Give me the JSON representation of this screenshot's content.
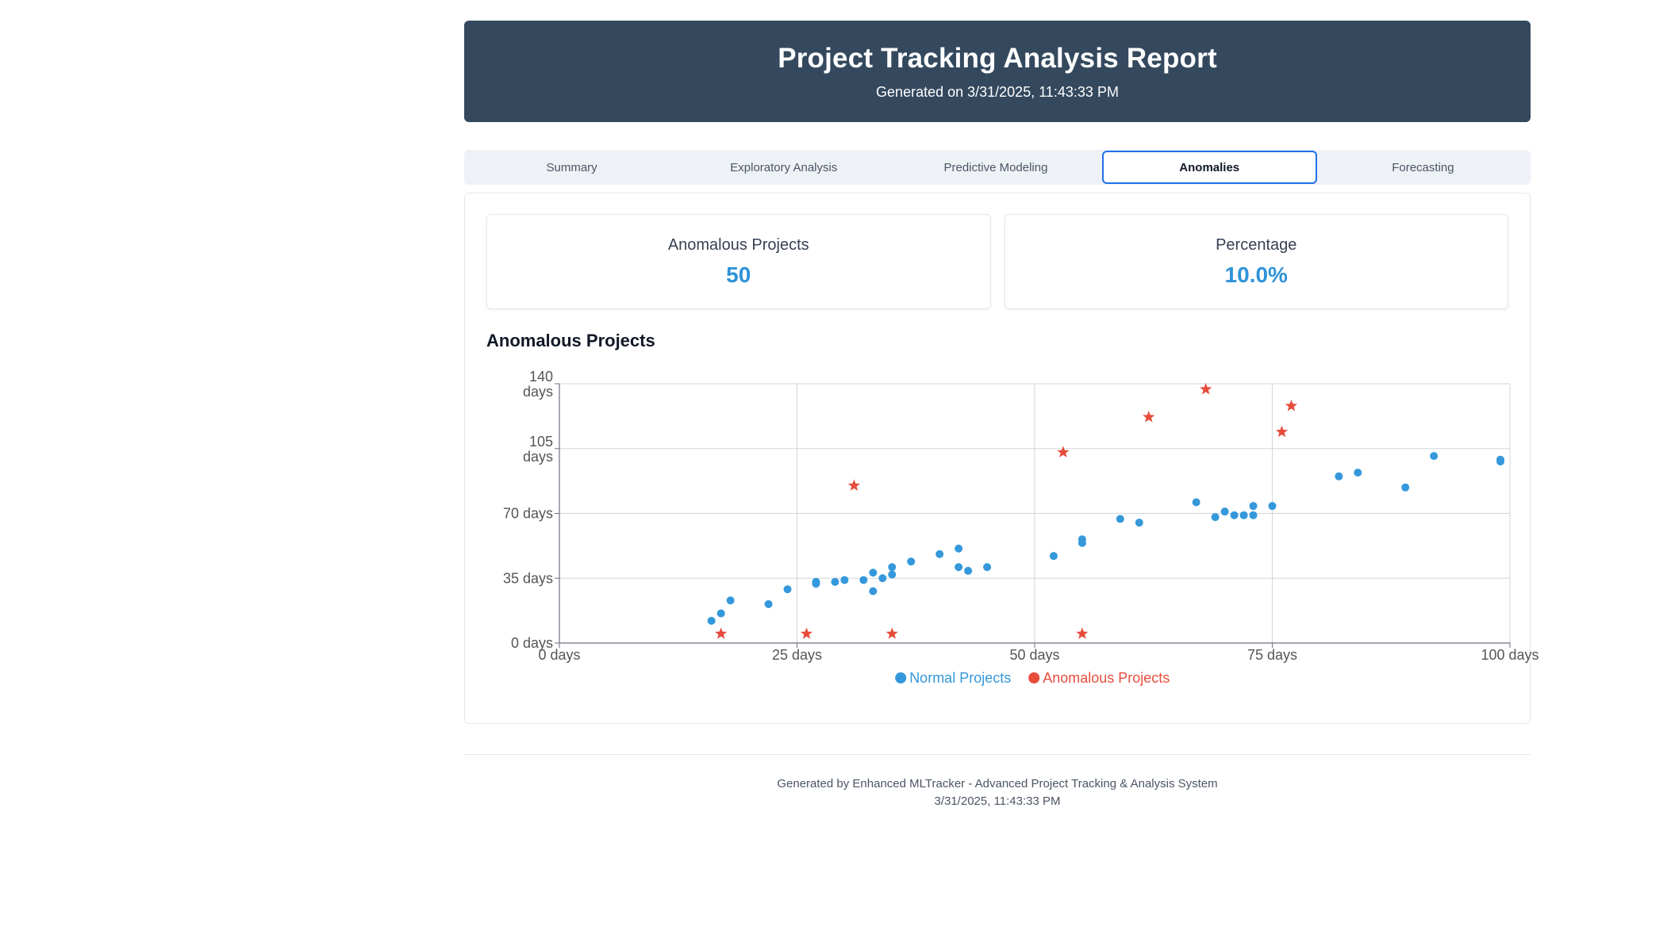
{
  "header": {
    "title": "Project Tracking Analysis Report",
    "subtitle": "Generated on 3/31/2025, 11:43:33 PM"
  },
  "tabs": [
    {
      "label": "Summary",
      "active": false
    },
    {
      "label": "Exploratory Analysis",
      "active": false
    },
    {
      "label": "Predictive Modeling",
      "active": false
    },
    {
      "label": "Anomalies",
      "active": true
    },
    {
      "label": "Forecasting",
      "active": false
    }
  ],
  "cards": {
    "anomalous": {
      "label": "Anomalous Projects",
      "value": "50"
    },
    "percentage": {
      "label": "Percentage",
      "value": "10.0%"
    }
  },
  "chart_title": "Anomalous Projects",
  "chart_data": {
    "type": "scatter",
    "title": "Anomalous Projects",
    "xlim": [
      0,
      100
    ],
    "ylim": [
      0,
      140
    ],
    "x_ticks": [
      {
        "value": 0,
        "label": "0 days"
      },
      {
        "value": 25,
        "label": "25 days"
      },
      {
        "value": 50,
        "label": "50 days"
      },
      {
        "value": 75,
        "label": "75 days"
      },
      {
        "value": 100,
        "label": "100 days"
      }
    ],
    "y_ticks": [
      {
        "value": 0,
        "label": "0 days"
      },
      {
        "value": 35,
        "label": "35 days"
      },
      {
        "value": 70,
        "label": "70 days"
      },
      {
        "value": 105,
        "label": "105 days"
      },
      {
        "value": 140,
        "label": "140 days"
      }
    ],
    "grid": true,
    "legend_position": "bottom",
    "series": [
      {
        "name": "Normal Projects",
        "color": "#3498db",
        "marker": "circle",
        "points": [
          [
            16,
            12
          ],
          [
            17,
            16
          ],
          [
            18,
            23
          ],
          [
            22,
            21
          ],
          [
            24,
            29
          ],
          [
            27,
            32
          ],
          [
            27,
            33
          ],
          [
            29,
            33
          ],
          [
            30,
            34
          ],
          [
            32,
            34
          ],
          [
            33,
            28
          ],
          [
            33,
            38
          ],
          [
            34,
            35
          ],
          [
            35,
            37
          ],
          [
            35,
            41
          ],
          [
            37,
            44
          ],
          [
            40,
            48
          ],
          [
            42,
            51
          ],
          [
            42,
            41
          ],
          [
            43,
            39
          ],
          [
            45,
            41
          ],
          [
            52,
            47
          ],
          [
            55,
            54
          ],
          [
            55,
            56
          ],
          [
            59,
            67
          ],
          [
            61,
            65
          ],
          [
            67,
            76
          ],
          [
            69,
            68
          ],
          [
            70,
            71
          ],
          [
            71,
            69
          ],
          [
            72,
            69
          ],
          [
            73,
            69
          ],
          [
            73,
            74
          ],
          [
            75,
            74
          ],
          [
            82,
            90
          ],
          [
            84,
            92
          ],
          [
            89,
            84
          ],
          [
            92,
            101
          ],
          [
            99,
            98
          ],
          [
            99,
            99
          ]
        ]
      },
      {
        "name": "Anomalous Projects",
        "color": "#e74c3c",
        "marker": "star",
        "points": [
          [
            17,
            5
          ],
          [
            26,
            5
          ],
          [
            31,
            85
          ],
          [
            35,
            5
          ],
          [
            53,
            103
          ],
          [
            55,
            5
          ],
          [
            62,
            122
          ],
          [
            68,
            137
          ],
          [
            76,
            114
          ],
          [
            77,
            128
          ]
        ]
      }
    ]
  },
  "footer": {
    "line1": "Generated by Enhanced MLTracker - Advanced Project Tracking & Analysis System",
    "line2": "3/31/2025, 11:43:33 PM"
  }
}
